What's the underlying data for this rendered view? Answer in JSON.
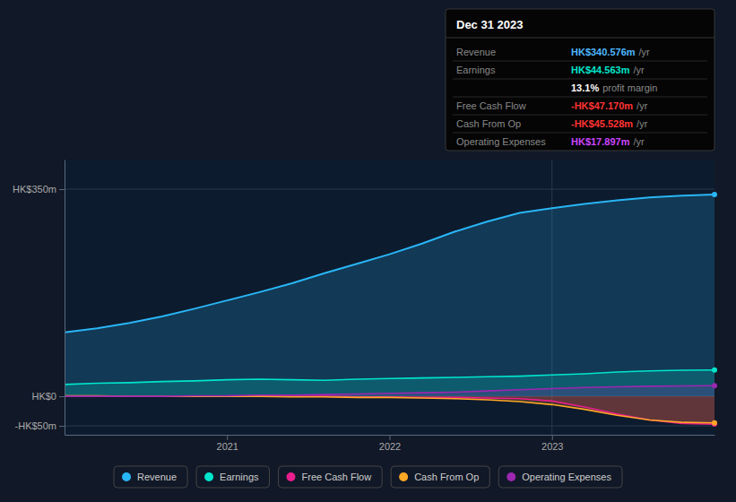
{
  "chart_data": {
    "type": "area",
    "x": [
      2020,
      2020.2,
      2020.4,
      2020.6,
      2020.8,
      2021,
      2021.2,
      2021.4,
      2021.6,
      2021.8,
      2022,
      2022.2,
      2022.4,
      2022.6,
      2022.8,
      2023,
      2023.2,
      2023.4,
      2023.6,
      2023.8,
      2024
    ],
    "series": [
      {
        "name": "Revenue",
        "color": "#29b6f6",
        "values": [
          108,
          115,
          124,
          135,
          148,
          162,
          176,
          191,
          208,
          224,
          240,
          258,
          278,
          295,
          310,
          318,
          325,
          331,
          336,
          339,
          341
        ]
      },
      {
        "name": "Earnings",
        "color": "#00e5cc",
        "values": [
          20,
          22,
          23,
          25,
          26,
          28,
          29,
          28,
          27,
          29,
          30,
          31,
          32,
          33,
          34,
          36,
          38,
          41,
          43,
          44,
          44.5
        ]
      },
      {
        "name": "Free Cash Flow",
        "color": "#e91e8c",
        "values": [
          0,
          0,
          0,
          0,
          0,
          0,
          0,
          0,
          0,
          -1,
          -1,
          -2,
          -2,
          -3,
          -4,
          -8,
          -18,
          -30,
          -40,
          -46,
          -47
        ]
      },
      {
        "name": "Cash From Op",
        "color": "#ffa726",
        "values": [
          1,
          1,
          0,
          0,
          0,
          0,
          0,
          -1,
          -1,
          -2,
          -2,
          -3,
          -4,
          -6,
          -9,
          -14,
          -22,
          -32,
          -40,
          -44,
          -45
        ]
      },
      {
        "name": "Operating Expenses",
        "color": "#9c27b0",
        "values": [
          0,
          0,
          0,
          0,
          1,
          1,
          2,
          2,
          3,
          4,
          5,
          6,
          7,
          9,
          11,
          13,
          15,
          16,
          17,
          17.5,
          17.9
        ]
      }
    ],
    "xlim": [
      2020,
      2024
    ],
    "ylim": [
      -65,
      400
    ],
    "xticks": [
      2021,
      2022,
      2023
    ],
    "yticks": [
      {
        "value": -50,
        "label": "-HK$50m"
      },
      {
        "value": 0,
        "label": "HK$0"
      },
      {
        "value": 350,
        "label": "HK$350m"
      }
    ],
    "grid": true,
    "legend": "bottom",
    "annotation": {
      "x": 2023,
      "title": "Dec 31 2023",
      "rows": [
        {
          "label": "Revenue",
          "value": "HK$340.576m",
          "suffix": "/yr",
          "color": "#4db8ff"
        },
        {
          "label": "Earnings",
          "value": "HK$44.563m",
          "suffix": "/yr",
          "color": "#00e5cc"
        },
        {
          "value": "13.1%",
          "suffix": "profit margin",
          "color": "#ffffff"
        },
        {
          "label": "Free Cash Flow",
          "value": "-HK$47.170m",
          "suffix": "/yr",
          "color": "#ff3333"
        },
        {
          "label": "Cash From Op",
          "value": "-HK$45.528m",
          "suffix": "/yr",
          "color": "#ff3333"
        },
        {
          "label": "Operating Expenses",
          "value": "HK$17.897m",
          "suffix": "/yr",
          "color": "#cc44ff"
        }
      ]
    }
  }
}
